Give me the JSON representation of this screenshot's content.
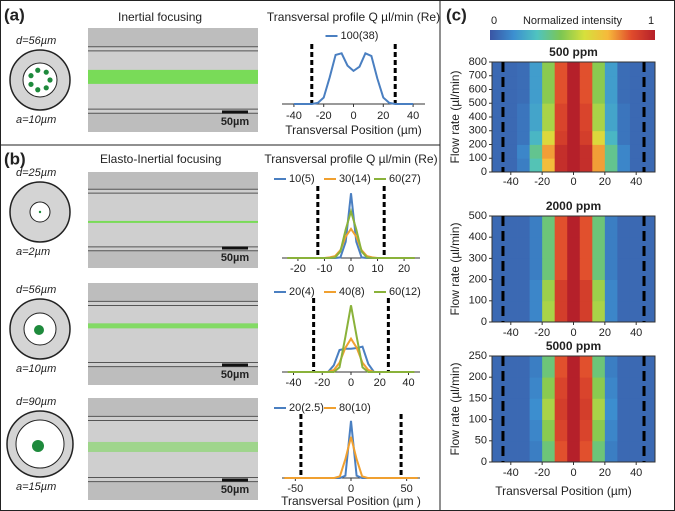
{
  "panels": [
    {
      "label": "(a)",
      "title": "Inertial focusing"
    },
    {
      "label": "(b)",
      "title": "Elasto-Inertial focusing"
    },
    {
      "label": "(c)"
    }
  ],
  "schematics": [
    {
      "d": "d=56µm",
      "a": "a=10µm",
      "scalebar": "50µm"
    },
    {
      "d": "d=25µm",
      "a": "a=2µm",
      "scalebar": "50µm"
    },
    {
      "d": "d=56µm",
      "a": "a=10µm",
      "scalebar": "50µm"
    },
    {
      "d": "d=90µm",
      "a": "a=15µm",
      "scalebar": "50µm"
    }
  ],
  "colorbar": {
    "label": "Normalized intensity",
    "ticks": [
      0,
      1
    ],
    "colors": [
      "#3a55a4",
      "#3c8fd0",
      "#4fc3c0",
      "#7cc653",
      "#d6e03c",
      "#f6b93b",
      "#e04b2c",
      "#b5202a"
    ]
  },
  "chart_data": [
    {
      "type": "line",
      "title": "Transversal profile Q µl/min (Re)",
      "xlabel": "Transversal Position (µm)",
      "x": [
        -40,
        -36,
        -32,
        -28,
        -24,
        -20,
        -16,
        -12,
        -8,
        -4,
        0,
        4,
        8,
        12,
        16,
        20,
        24,
        28,
        32,
        36,
        40
      ],
      "series": [
        {
          "name": "100(38)",
          "color": "#4a7fc1",
          "values": [
            0,
            0,
            0,
            0,
            0.02,
            0.12,
            0.5,
            0.92,
            0.95,
            0.72,
            0.62,
            0.7,
            0.95,
            0.9,
            0.48,
            0.12,
            0.02,
            0,
            0,
            0,
            0
          ]
        }
      ],
      "xlim": [
        -48,
        48
      ],
      "xticks": [
        -40,
        -20,
        0,
        20,
        40
      ],
      "ylim": [
        0,
        1.05
      ],
      "vlines": [
        -28,
        28
      ]
    },
    {
      "type": "line",
      "title": "Transversal profile Q µl/min (Re)",
      "x": [
        -24,
        -22,
        -20,
        -18,
        -16,
        -14,
        -12,
        -10,
        -8,
        -6,
        -4,
        -2,
        0,
        2,
        4,
        6,
        8,
        10,
        12,
        14,
        16,
        18,
        20,
        22,
        24
      ],
      "series": [
        {
          "name": "10(5)",
          "color": "#4a7fc1",
          "values": [
            0,
            0,
            0,
            0,
            0,
            0,
            0,
            0,
            0,
            0,
            0.01,
            0.25,
            1,
            0.25,
            0.01,
            0,
            0,
            0,
            0,
            0,
            0,
            0,
            0,
            0,
            0
          ]
        },
        {
          "name": "30(14)",
          "color": "#f0a030",
          "values": [
            0,
            0,
            0,
            0,
            0,
            0,
            0,
            0,
            0.01,
            0.03,
            0.12,
            0.33,
            0.45,
            0.33,
            0.12,
            0.03,
            0.01,
            0,
            0,
            0,
            0,
            0,
            0,
            0,
            0
          ]
        },
        {
          "name": "60(27)",
          "color": "#8ab23a",
          "values": [
            0,
            0,
            0,
            0,
            0,
            0,
            0,
            0,
            0,
            0.01,
            0.1,
            0.44,
            0.72,
            0.44,
            0.1,
            0.01,
            0,
            0,
            0,
            0,
            0,
            0,
            0,
            0,
            0
          ]
        }
      ],
      "xlim": [
        -26,
        26
      ],
      "xticks": [
        -20,
        -10,
        0,
        10,
        20
      ],
      "ylim": [
        0,
        1.05
      ],
      "vlines": [
        -12.5,
        12.5
      ]
    },
    {
      "type": "line",
      "x": [
        -44,
        -40,
        -36,
        -32,
        -28,
        -24,
        -20,
        -16,
        -12,
        -8,
        -4,
        0,
        4,
        8,
        12,
        16,
        20,
        24,
        28,
        32,
        36,
        40,
        44
      ],
      "series": [
        {
          "name": "20(4)",
          "color": "#4a7fc1",
          "values": [
            0,
            0,
            0,
            0,
            0,
            0,
            0,
            0,
            0.1,
            0.33,
            0.35,
            0.35,
            0.36,
            0.38,
            0.12,
            0,
            0,
            0,
            0,
            0,
            0,
            0,
            0
          ]
        },
        {
          "name": "40(8)",
          "color": "#f0a030",
          "values": [
            0,
            0,
            0,
            0,
            0,
            0,
            0,
            0,
            0.03,
            0.14,
            0.36,
            0.5,
            0.36,
            0.14,
            0.03,
            0,
            0,
            0,
            0,
            0,
            0,
            0,
            0
          ]
        },
        {
          "name": "60(12)",
          "color": "#8ab23a",
          "values": [
            0,
            0,
            0,
            0,
            0,
            0,
            0,
            0,
            0,
            0.07,
            0.52,
            1,
            0.52,
            0.07,
            0,
            0,
            0,
            0,
            0,
            0,
            0,
            0,
            0
          ]
        }
      ],
      "xlim": [
        -48,
        48
      ],
      "xticks": [
        -40,
        -20,
        0,
        20,
        40
      ],
      "ylim": [
        0,
        1.05
      ],
      "vlines": [
        -26,
        26
      ]
    },
    {
      "type": "line",
      "xlabel": "Transversal Position (µm )",
      "x": [
        -60,
        -55,
        -50,
        -45,
        -40,
        -35,
        -30,
        -25,
        -20,
        -15,
        -10,
        -5,
        0,
        5,
        10,
        15,
        20,
        25,
        30,
        35,
        40,
        45,
        50,
        55,
        60
      ],
      "series": [
        {
          "name": "20(2.5)",
          "color": "#4a7fc1",
          "values": [
            0,
            0,
            0,
            0,
            0,
            0,
            0,
            0,
            0,
            0,
            0,
            0.04,
            1,
            0.04,
            0,
            0,
            0,
            0,
            0,
            0,
            0,
            0,
            0,
            0,
            0
          ]
        },
        {
          "name": "80(10)",
          "color": "#f0a030",
          "values": [
            0,
            0,
            0,
            0,
            0,
            0,
            0,
            0,
            0,
            0,
            0.03,
            0.33,
            0.72,
            0.33,
            0.03,
            0,
            0,
            0,
            0,
            0,
            0,
            0,
            0,
            0,
            0
          ]
        }
      ],
      "xlim": [
        -62,
        62
      ],
      "xticks": [
        -50,
        0,
        50
      ],
      "ylim": [
        0,
        1.05
      ],
      "vlines": [
        -45,
        45
      ]
    },
    {
      "type": "heatmap",
      "title": "500 ppm",
      "ylabel": "Flow rate (µl/min)",
      "x": [
        -48,
        -40,
        -32,
        -24,
        -16,
        -8,
        0,
        8,
        16,
        24,
        32,
        40,
        48
      ],
      "y": [
        50,
        150,
        250,
        350,
        450,
        550,
        650,
        750
      ],
      "z": [
        [
          0.05,
          0.05,
          0.1,
          0.3,
          0.7,
          0.95,
          1,
          0.95,
          0.75,
          0.35,
          0.12,
          0.05,
          0.05
        ],
        [
          0.05,
          0.05,
          0.12,
          0.35,
          0.75,
          0.95,
          1,
          0.95,
          0.75,
          0.35,
          0.12,
          0.05,
          0.05
        ],
        [
          0.05,
          0.05,
          0.08,
          0.25,
          0.6,
          0.9,
          1,
          0.9,
          0.6,
          0.25,
          0.08,
          0.05,
          0.05
        ],
        [
          0.05,
          0.05,
          0.08,
          0.2,
          0.5,
          0.88,
          1,
          0.88,
          0.5,
          0.2,
          0.08,
          0.05,
          0.05
        ],
        [
          0.05,
          0.05,
          0.08,
          0.2,
          0.5,
          0.88,
          1,
          0.88,
          0.5,
          0.2,
          0.08,
          0.05,
          0.05
        ],
        [
          0.05,
          0.05,
          0.06,
          0.18,
          0.45,
          0.85,
          1,
          0.85,
          0.45,
          0.18,
          0.06,
          0.05,
          0.05
        ],
        [
          0.05,
          0.05,
          0.06,
          0.18,
          0.45,
          0.85,
          1,
          0.85,
          0.45,
          0.18,
          0.06,
          0.05,
          0.05
        ],
        [
          0.05,
          0.05,
          0.06,
          0.18,
          0.45,
          0.85,
          1,
          0.85,
          0.45,
          0.18,
          0.06,
          0.05,
          0.05
        ]
      ],
      "xlim": [
        -52,
        52
      ],
      "xticks": [
        -40,
        -20,
        0,
        20,
        40
      ],
      "ylim": [
        0,
        800
      ],
      "yticks": [
        0,
        100,
        200,
        300,
        400,
        500,
        600,
        700,
        800
      ],
      "vlines": [
        -45,
        45
      ]
    },
    {
      "type": "heatmap",
      "title": "2000 ppm",
      "ylabel": "Flow rate (µl/min)",
      "x": [
        -48,
        -40,
        -32,
        -24,
        -16,
        -8,
        0,
        8,
        16,
        24,
        32,
        40,
        48
      ],
      "y": [
        50,
        150,
        250,
        350,
        450
      ],
      "z": [
        [
          0.05,
          0.05,
          0.05,
          0.12,
          0.5,
          0.9,
          1,
          0.9,
          0.5,
          0.12,
          0.05,
          0.05,
          0.05
        ],
        [
          0.05,
          0.05,
          0.05,
          0.12,
          0.48,
          0.9,
          1,
          0.9,
          0.48,
          0.12,
          0.05,
          0.05,
          0.05
        ],
        [
          0.05,
          0.05,
          0.05,
          0.1,
          0.38,
          0.85,
          1,
          0.85,
          0.38,
          0.1,
          0.05,
          0.05,
          0.05
        ],
        [
          0.05,
          0.05,
          0.05,
          0.1,
          0.38,
          0.85,
          1,
          0.85,
          0.38,
          0.1,
          0.05,
          0.05,
          0.05
        ],
        [
          0.05,
          0.05,
          0.05,
          0.1,
          0.38,
          0.85,
          1,
          0.85,
          0.38,
          0.1,
          0.05,
          0.05,
          0.05
        ]
      ],
      "xlim": [
        -52,
        52
      ],
      "xticks": [
        -40,
        -20,
        0,
        20,
        40
      ],
      "ylim": [
        0,
        500
      ],
      "yticks": [
        0,
        100,
        200,
        300,
        400,
        500
      ],
      "vlines": [
        -45,
        45
      ]
    },
    {
      "type": "heatmap",
      "title": "5000 ppm",
      "ylabel": "Flow rate (µl/min)",
      "xlabel": "Transversal Position (µm)",
      "x": [
        -48,
        -40,
        -32,
        -24,
        -16,
        -8,
        0,
        8,
        16,
        24,
        32,
        40,
        48
      ],
      "y": [
        25,
        75,
        125,
        175,
        225
      ],
      "z": [
        [
          0.05,
          0.05,
          0.05,
          0.1,
          0.38,
          0.85,
          1,
          0.85,
          0.38,
          0.1,
          0.05,
          0.05,
          0.05
        ],
        [
          0.05,
          0.05,
          0.05,
          0.12,
          0.45,
          0.88,
          1,
          0.88,
          0.45,
          0.12,
          0.05,
          0.05,
          0.05
        ],
        [
          0.05,
          0.05,
          0.05,
          0.14,
          0.5,
          0.9,
          1,
          0.9,
          0.5,
          0.14,
          0.05,
          0.05,
          0.05
        ],
        [
          0.05,
          0.05,
          0.05,
          0.12,
          0.45,
          0.88,
          1,
          0.88,
          0.45,
          0.12,
          0.05,
          0.05,
          0.05
        ],
        [
          0.05,
          0.05,
          0.05,
          0.1,
          0.38,
          0.85,
          1,
          0.85,
          0.38,
          0.1,
          0.05,
          0.05,
          0.05
        ]
      ],
      "xlim": [
        -52,
        52
      ],
      "xticks": [
        -40,
        -20,
        0,
        20,
        40
      ],
      "ylim": [
        0,
        250
      ],
      "yticks": [
        0,
        50,
        100,
        150,
        200,
        250
      ],
      "vlines": [
        -45,
        45
      ]
    }
  ]
}
